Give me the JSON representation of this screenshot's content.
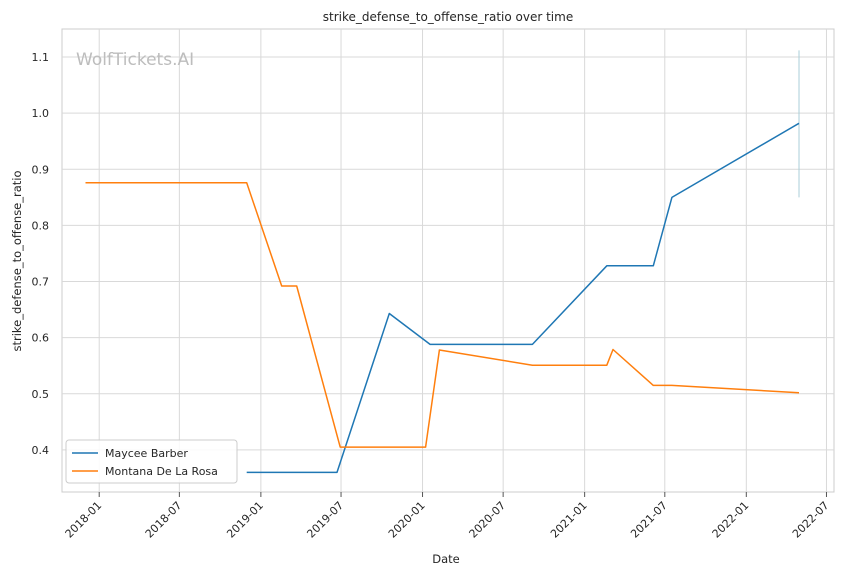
{
  "watermark": "WolfTickets.AI",
  "chart_data": {
    "type": "line",
    "title": "strike_defense_to_offense_ratio over time",
    "xlabel": "Date",
    "ylabel": "strike_defense_to_offense_ratio",
    "xlim": [
      "2017-10-09",
      "2022-07-18"
    ],
    "ylim": [
      0.325,
      1.15
    ],
    "x_ticks": [
      "2018-01",
      "2018-07",
      "2019-01",
      "2019-07",
      "2020-01",
      "2020-07",
      "2021-01",
      "2021-07",
      "2022-01",
      "2022-07"
    ],
    "y_ticks": [
      0.4,
      0.5,
      0.6,
      0.7,
      0.8,
      0.9,
      1.0,
      1.1
    ],
    "grid": true,
    "legend": "lower-left",
    "series": [
      {
        "name": "Maycee Barber",
        "color": "#1f77b4",
        "points": [
          [
            "2018-11-30",
            0.36
          ],
          [
            "2019-06-22",
            0.36
          ],
          [
            "2019-10-18",
            0.643
          ],
          [
            "2020-01-18",
            0.588
          ],
          [
            "2020-09-05",
            0.588
          ],
          [
            "2021-02-20",
            0.728
          ],
          [
            "2021-06-05",
            0.728
          ],
          [
            "2021-07-17",
            0.85
          ],
          [
            "2022-04-30",
            0.982
          ]
        ]
      },
      {
        "name": "Montana De La Rosa",
        "color": "#ff7f0e",
        "points": [
          [
            "2017-12-01",
            0.876
          ],
          [
            "2018-11-30",
            0.876
          ],
          [
            "2019-02-17",
            0.692
          ],
          [
            "2019-03-23",
            0.692
          ],
          [
            "2019-06-29",
            0.405
          ],
          [
            "2020-01-08",
            0.405
          ],
          [
            "2020-02-08",
            0.578
          ],
          [
            "2020-09-05",
            0.551
          ],
          [
            "2021-02-20",
            0.551
          ],
          [
            "2021-03-06",
            0.579
          ],
          [
            "2021-06-05",
            0.515
          ],
          [
            "2021-07-17",
            0.515
          ],
          [
            "2022-04-30",
            0.502
          ]
        ]
      }
    ],
    "markers": [
      {
        "date": "2022-04-30",
        "from": 0.85,
        "to": 1.112,
        "color": "#aacfd8"
      }
    ]
  }
}
